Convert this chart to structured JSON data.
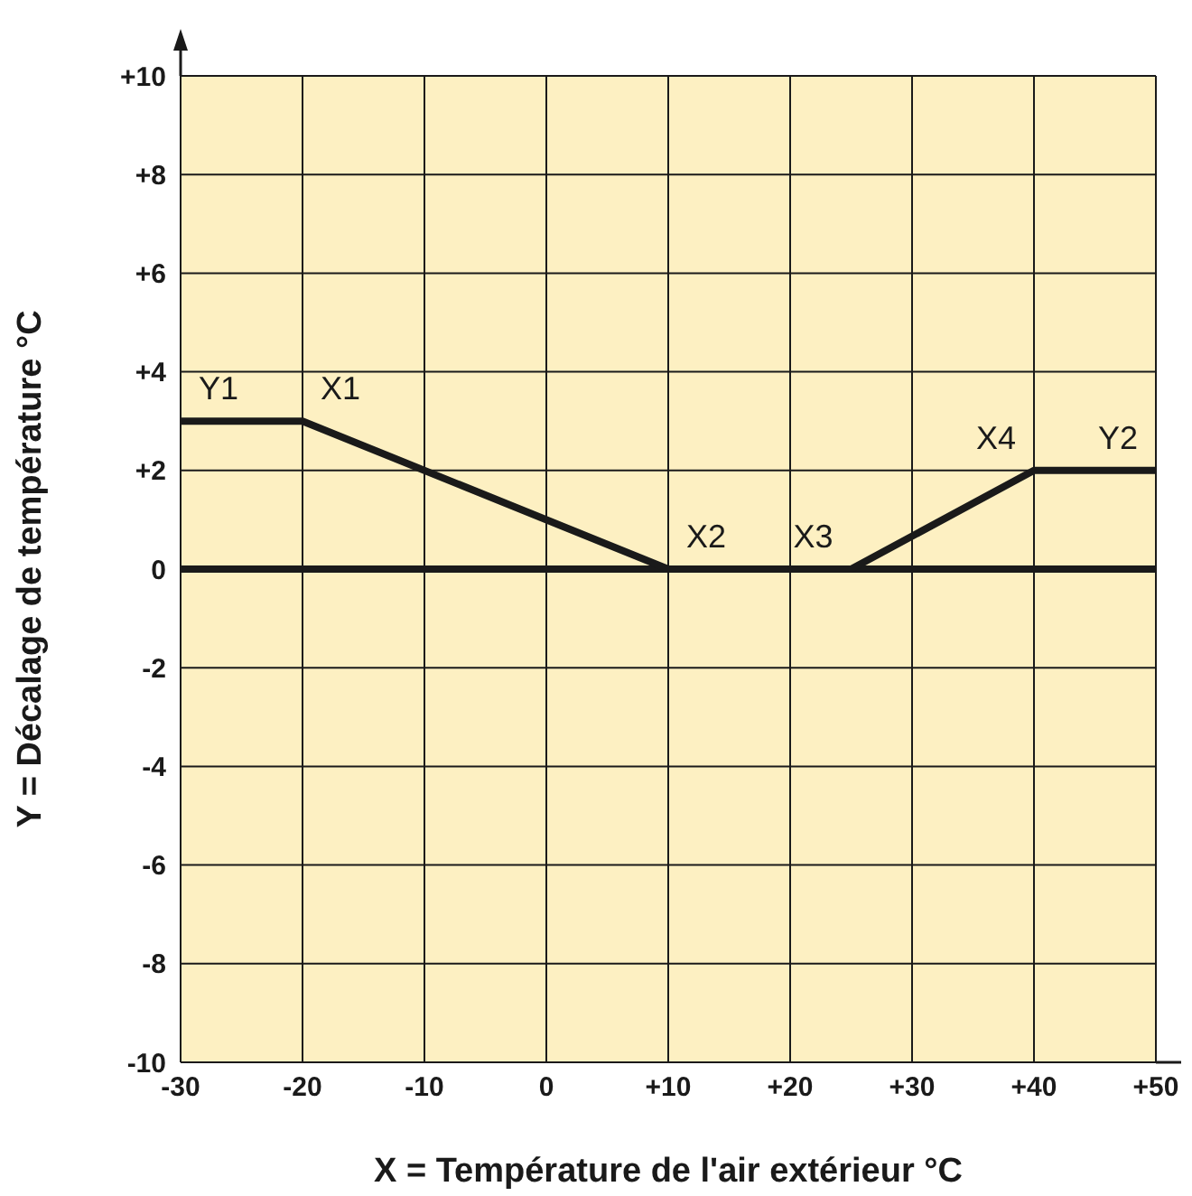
{
  "chart_data": {
    "type": "line",
    "xlabel": "X = Température de l'air extérieur °C",
    "ylabel": "Y = Décalage de température °C",
    "x": [
      -30,
      -20,
      10,
      25,
      40,
      50
    ],
    "series": [
      {
        "color": "#1a1a1a",
        "values": [
          3,
          3,
          0,
          0,
          2,
          2
        ]
      }
    ],
    "xlim": [
      -30,
      50
    ],
    "xticks": [
      -30,
      -20,
      -10,
      0,
      {
        "value": 10,
        "label": "+10"
      },
      {
        "value": 20,
        "label": "+20"
      },
      {
        "value": 30,
        "label": "+30"
      },
      {
        "value": 40,
        "label": "+40"
      },
      {
        "value": 50,
        "label": "+50"
      }
    ],
    "ylim": [
      -10,
      10
    ],
    "yticks": [
      -10,
      -8,
      -6,
      -4,
      -2,
      0,
      {
        "value": 2,
        "label": "+2"
      },
      {
        "value": 4,
        "label": "+4"
      },
      {
        "value": 6,
        "label": "+6"
      },
      {
        "value": 8,
        "label": "+8"
      },
      {
        "value": 10,
        "label": "+10"
      }
    ],
    "ref_lines": [
      {
        "axis": "y",
        "value": 0,
        "color": "#1a1a1a"
      }
    ],
    "annotations": [
      {
        "text": "Y1",
        "x": -30,
        "y": 3
      },
      {
        "text": "X1",
        "x": -20,
        "y": 3
      },
      {
        "text": "X2",
        "x": 10,
        "y": 0
      },
      {
        "text": "X3",
        "x": 25,
        "y": 0
      },
      {
        "text": "X4",
        "x": 40,
        "y": 2
      },
      {
        "text": "Y2",
        "x": 50,
        "y": 2
      }
    ],
    "grid": true,
    "marker": "none",
    "line_style": "solid",
    "legend": false
  }
}
